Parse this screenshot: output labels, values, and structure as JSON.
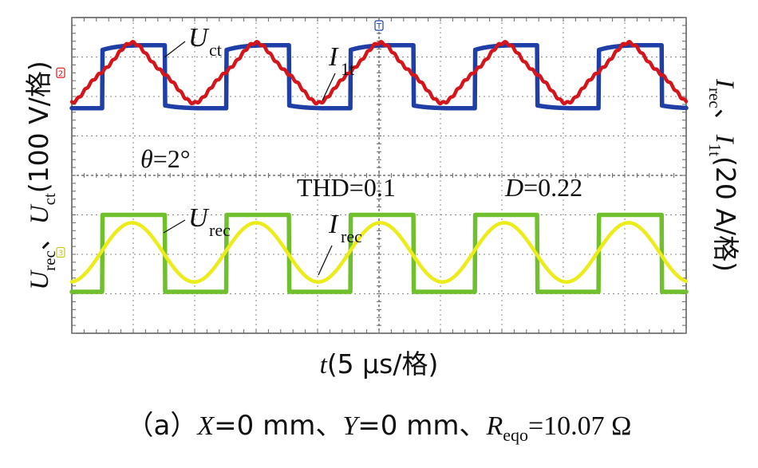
{
  "chart_data": {
    "type": "line",
    "title": "",
    "xlabel_var": "t",
    "xlabel_unit": "(5 μs/格)",
    "ylabel_left": {
      "v1": "U",
      "s1": "rec",
      "sep": "、",
      "v2": "U",
      "s2": "ct",
      "unit": "(100 V/格)"
    },
    "ylabel_right": {
      "v1": "I",
      "s1": "rec",
      "sep": "、",
      "v2": "I",
      "s2": "1t",
      "unit": "(20 A/格)"
    },
    "grid": true,
    "divisions": {
      "x": 10,
      "y": 8
    },
    "x_range_div": [
      0,
      10
    ],
    "y_range_div": [
      0,
      8
    ],
    "period_div": 2.02,
    "series": [
      {
        "name": "U_ct",
        "label_main": "U",
        "label_sub": "ct",
        "color": "#1f3fa6",
        "shape": "square",
        "high_div": 7.3,
        "low_div": 5.7,
        "rise_div": 0.5,
        "fall_div": 1.52,
        "droop_div": 0.12
      },
      {
        "name": "I_1t",
        "label_main": "I",
        "label_sub": "1t",
        "color": "#d4161c",
        "shape": "distorted-sine",
        "center_div": 6.6,
        "amplitude_div": 0.68,
        "peak_div": 0.98,
        "harmonic3": 0.12,
        "ripple": 0.04
      },
      {
        "name": "U_rec",
        "label_main": "U",
        "label_sub": "rec",
        "color": "#6fc02c",
        "shape": "square",
        "high_div": 3.0,
        "low_div": 1.05,
        "rise_div": 0.5,
        "fall_div": 1.52,
        "droop_div": 0
      },
      {
        "name": "I_rec",
        "label_main": "I",
        "label_sub": "rec",
        "color": "#ecec1a",
        "shape": "sine",
        "center_div": 2.05,
        "amplitude_div": 0.75,
        "peak_div": 0.98
      }
    ],
    "channel_markers": [
      {
        "name": "ch-marker-I1t",
        "text": "2",
        "color": "#d4161c"
      },
      {
        "name": "ch-marker-Urec",
        "text": "3",
        "color": "#c8c81a"
      },
      {
        "name": "ch-marker-trigger",
        "text": "T",
        "color": "#1f3fa6"
      }
    ],
    "annotations": {
      "theta_sym": "θ",
      "theta_val": "=2°",
      "thd": "THD=0.1",
      "duty_sym": "D",
      "duty_val": "=0.22"
    }
  },
  "caption": {
    "prefix": "（a）",
    "x_sym": "X",
    "x_val": "=0 mm、",
    "y_sym": "Y",
    "y_val": "=0 mm、",
    "r_sym": "R",
    "r_sub": "eqo",
    "r_val": "=10.07 Ω"
  }
}
